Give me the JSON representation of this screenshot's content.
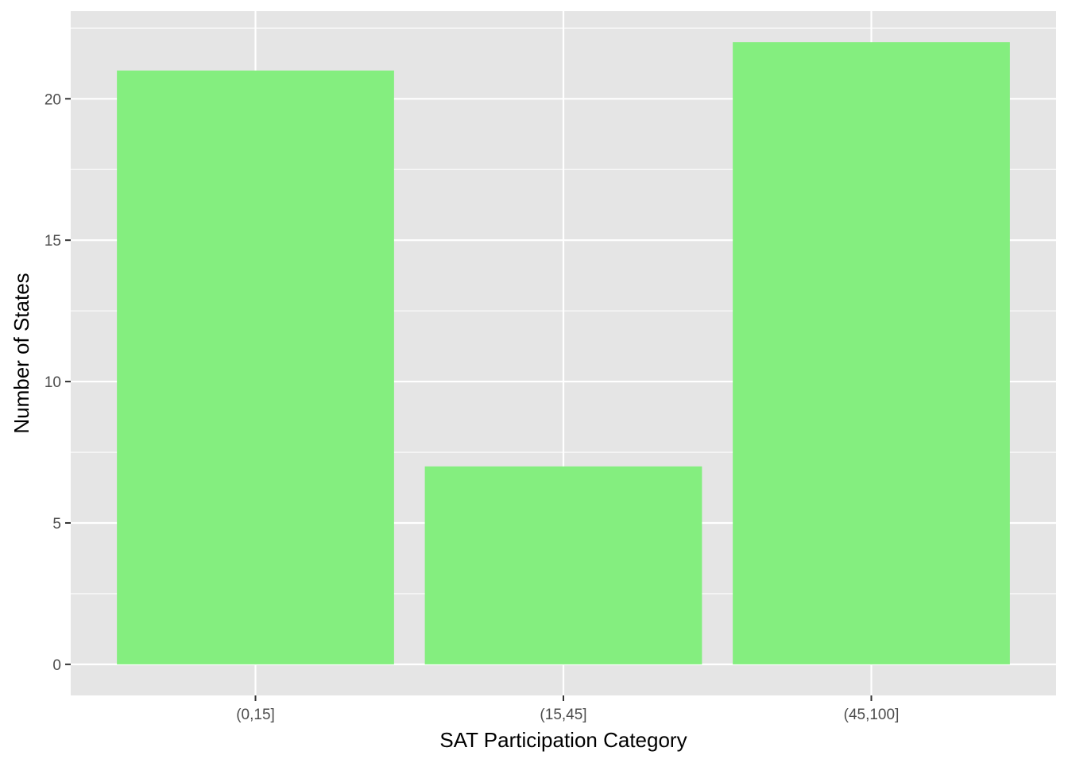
{
  "chart_data": {
    "type": "bar",
    "title": "",
    "xlabel": "SAT Participation Category",
    "ylabel": "Number of States",
    "categories": [
      "(0,15]",
      "(15,45]",
      "(45,100]"
    ],
    "values": [
      21,
      7,
      22
    ],
    "ylim": [
      -1.1,
      23.1
    ],
    "yticks": [
      0,
      5,
      10,
      15,
      20
    ],
    "ytick_labels": [
      "0",
      "5",
      "10",
      "15",
      "20"
    ],
    "grid": true,
    "legend": "none",
    "colors": {
      "bar": "#84ee7f",
      "panel_background": "#e5e5e5",
      "grid": "#ffffff",
      "tick_text": "#4d4d4d",
      "axis_title_text": "#000000"
    }
  }
}
